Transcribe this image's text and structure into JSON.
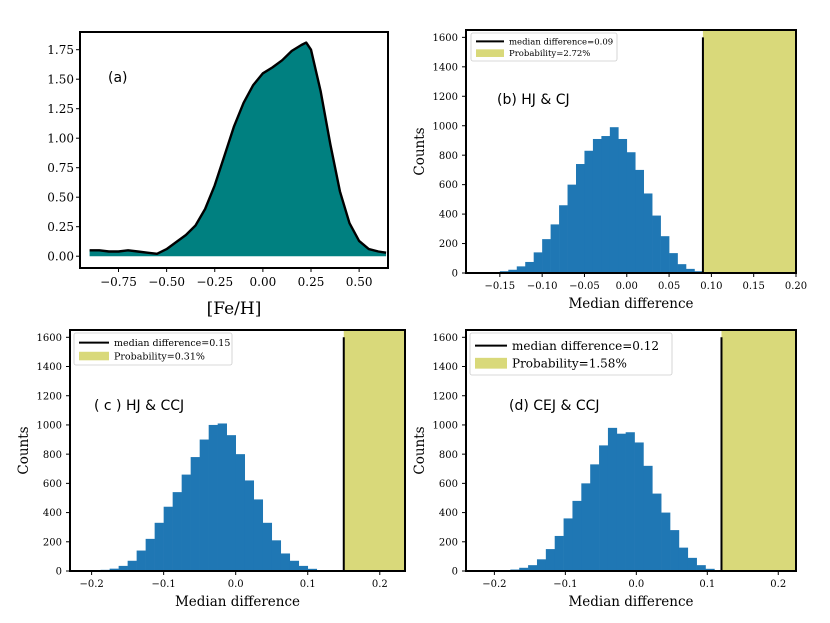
{
  "colors": {
    "kde_fill": "#008080",
    "hist_fill": "#1f77b4",
    "shade_fill": "#d9d97a",
    "line": "#000000"
  },
  "chart_data": [
    {
      "id": "a",
      "type": "area",
      "panel_label": "(a)",
      "xlabel": "[Fe/H]",
      "ylabel": "",
      "xlim": [
        -0.95,
        0.65
      ],
      "ylim": [
        -0.1,
        1.9
      ],
      "xticks": [
        -0.75,
        -0.5,
        -0.25,
        0.0,
        0.25,
        0.5
      ],
      "xtick_labels": [
        "−0.75",
        "−0.50",
        "−0.25",
        "0.00",
        "0.25",
        "0.50"
      ],
      "yticks": [
        0,
        0.25,
        0.5,
        0.75,
        1.0,
        1.25,
        1.5,
        1.75
      ],
      "ytick_labels": [
        "0.00",
        "0.25",
        "0.50",
        "0.75",
        "1.00",
        "1.25",
        "1.50",
        "1.75"
      ],
      "x": [
        -0.9,
        -0.85,
        -0.8,
        -0.75,
        -0.7,
        -0.65,
        -0.6,
        -0.55,
        -0.5,
        -0.45,
        -0.4,
        -0.35,
        -0.3,
        -0.25,
        -0.2,
        -0.15,
        -0.1,
        -0.05,
        0.0,
        0.05,
        0.1,
        0.15,
        0.2,
        0.225,
        0.25,
        0.3,
        0.35,
        0.4,
        0.45,
        0.5,
        0.55,
        0.6,
        0.64
      ],
      "y": [
        0.05,
        0.05,
        0.04,
        0.04,
        0.05,
        0.04,
        0.03,
        0.02,
        0.06,
        0.12,
        0.18,
        0.26,
        0.4,
        0.6,
        0.85,
        1.1,
        1.3,
        1.45,
        1.55,
        1.6,
        1.66,
        1.74,
        1.79,
        1.81,
        1.75,
        1.4,
        0.95,
        0.55,
        0.28,
        0.13,
        0.06,
        0.04,
        0.03
      ]
    },
    {
      "id": "b",
      "type": "bar",
      "panel_label": "(b) HJ & CJ",
      "xlabel": "Median difference",
      "ylabel": "Counts",
      "xlim": [
        -0.19,
        0.2
      ],
      "ylim": [
        0,
        1650
      ],
      "xticks": [
        -0.15,
        -0.1,
        -0.05,
        0.0,
        0.05,
        0.1,
        0.15,
        0.2
      ],
      "xtick_labels": [
        "−0.15",
        "−0.10",
        "−0.05",
        "0.00",
        "0.05",
        "0.10",
        "0.15",
        "0.20"
      ],
      "yticks": [
        0,
        200,
        400,
        600,
        800,
        1000,
        1200,
        1400,
        1600
      ],
      "ytick_labels": [
        "0",
        "200",
        "400",
        "600",
        "800",
        "1000",
        "1200",
        "1400",
        "1600"
      ],
      "bin_start": -0.16,
      "bin_width": 0.01,
      "values": [
        5,
        12,
        22,
        45,
        75,
        140,
        230,
        330,
        460,
        600,
        740,
        830,
        910,
        930,
        990,
        910,
        820,
        700,
        540,
        390,
        250,
        135,
        60,
        28,
        12,
        5
      ],
      "median_line": 0.09,
      "line_top": 1600,
      "shade_from": 0.09,
      "legend": {
        "line_label": "median difference=0.09",
        "patch_label": "Probability=2.72%"
      }
    },
    {
      "id": "c",
      "type": "bar",
      "panel_label": "( c ) HJ & CCJ",
      "xlabel": "Median difference",
      "ylabel": "Counts",
      "xlim": [
        -0.23,
        0.235
      ],
      "ylim": [
        0,
        1650
      ],
      "xticks": [
        -0.2,
        -0.1,
        0.0,
        0.1,
        0.2
      ],
      "xtick_labels": [
        "−0.2",
        "−0.1",
        "0.0",
        "0.1",
        "0.2"
      ],
      "yticks": [
        0,
        200,
        400,
        600,
        800,
        1000,
        1200,
        1400,
        1600
      ],
      "ytick_labels": [
        "0",
        "200",
        "400",
        "600",
        "800",
        "1000",
        "1200",
        "1400",
        "1600"
      ],
      "bin_start": -0.2,
      "bin_width": 0.0125,
      "values": [
        4,
        8,
        16,
        35,
        70,
        140,
        220,
        330,
        440,
        540,
        660,
        780,
        900,
        1000,
        1010,
        930,
        800,
        620,
        490,
        330,
        210,
        120,
        70,
        35,
        15
      ],
      "median_line": 0.15,
      "line_top": 1600,
      "shade_from": 0.15,
      "legend": {
        "line_label": "median difference=0.15",
        "patch_label": "Probability=0.31%"
      }
    },
    {
      "id": "d",
      "type": "bar",
      "panel_label": "(d) CEJ & CCJ",
      "xlabel": "Median difference",
      "ylabel": "Counts",
      "xlim": [
        -0.24,
        0.225
      ],
      "ylim": [
        0,
        1650
      ],
      "xticks": [
        -0.2,
        -0.1,
        0.0,
        0.1,
        0.2
      ],
      "xtick_labels": [
        "−0.2",
        "−0.1",
        "0.0",
        "0.1",
        "0.2"
      ],
      "yticks": [
        0,
        200,
        400,
        600,
        800,
        1000,
        1200,
        1400,
        1600
      ],
      "ytick_labels": [
        "0",
        "200",
        "400",
        "600",
        "800",
        "1000",
        "1200",
        "1400",
        "1600"
      ],
      "bin_start": -0.19,
      "bin_width": 0.0125,
      "values": [
        5,
        10,
        22,
        40,
        80,
        150,
        240,
        360,
        480,
        600,
        730,
        860,
        980,
        940,
        950,
        880,
        720,
        530,
        400,
        280,
        160,
        90,
        40,
        15,
        6
      ],
      "median_line": 0.12,
      "line_top": 1600,
      "shade_from": 0.12,
      "legend": {
        "line_label": "median difference=0.12",
        "patch_label": "Probability=1.58%"
      }
    }
  ]
}
